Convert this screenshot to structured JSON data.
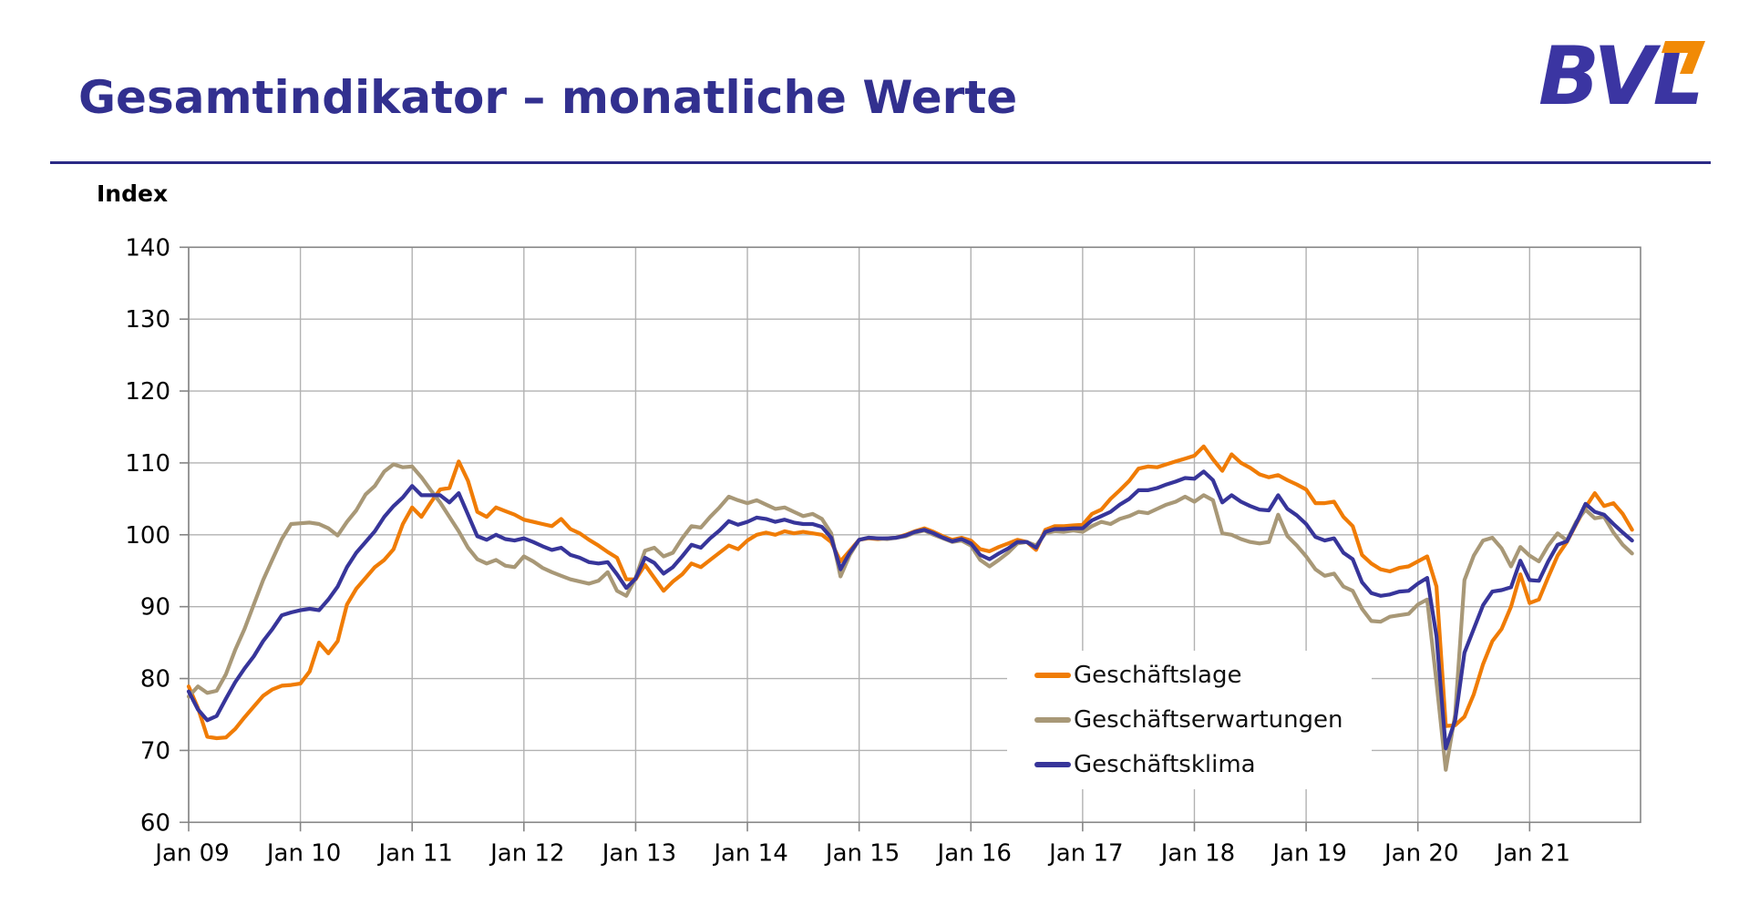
{
  "page": {
    "title": "Gesamtindikator – monatliche Werte",
    "logo_text": "BVL",
    "logo_colors": {
      "text": "#3b35a2",
      "glyph": "#f18a05"
    }
  },
  "chart_data": {
    "type": "line",
    "title": "Gesamtindikator – monatliche Werte",
    "xlabel": "",
    "ylabel": "Index",
    "ylim": [
      60,
      140
    ],
    "y_ticks": [
      60,
      70,
      80,
      90,
      100,
      110,
      120,
      130,
      140
    ],
    "x_labels": [
      "Jan 09",
      "Jan 10",
      "Jan 11",
      "Jan 12",
      "Jan 13",
      "Jan 14",
      "Jan 15",
      "Jan 16",
      "Jan 17",
      "Jan 18",
      "Jan 19",
      "Jan 20",
      "Jan 21"
    ],
    "x_range": "Jan 2009 – Dez 2021, monatlich",
    "months_per_label": 12,
    "grid": true,
    "legend_position": "inset-bottom-right",
    "series": [
      {
        "name": "Geschäftslage",
        "color": "#f07c05",
        "values": [
          78.9,
          75.9,
          71.9,
          71.7,
          71.8,
          73.0,
          74.6,
          76.1,
          77.6,
          78.5,
          79.0,
          79.1,
          79.3,
          81.0,
          85.0,
          83.5,
          85.2,
          90.3,
          92.5,
          94.0,
          95.5,
          96.5,
          98.0,
          101.5,
          103.8,
          102.5,
          104.5,
          106.3,
          106.5,
          110.2,
          107.5,
          103.2,
          102.5,
          103.8,
          103.3,
          102.8,
          102.1,
          101.8,
          101.5,
          101.2,
          102.2,
          100.8,
          100.2,
          99.3,
          98.5,
          97.6,
          96.8,
          93.8,
          93.8,
          95.8,
          94.0,
          92.2,
          93.5,
          94.5,
          96.0,
          95.5,
          96.5,
          97.5,
          98.5,
          98.0,
          99.2,
          100.0,
          100.3,
          100.0,
          100.5,
          100.2,
          100.4,
          100.2,
          100.0,
          99.0,
          96.3,
          97.8,
          99.3,
          99.5,
          99.4,
          99.5,
          99.6,
          100.0,
          100.5,
          100.9,
          100.4,
          99.8,
          99.3,
          99.6,
          99.2,
          98.0,
          97.7,
          98.3,
          98.8,
          99.3,
          99.0,
          97.9,
          100.7,
          101.2,
          101.2,
          101.3,
          101.4,
          102.9,
          103.5,
          105.0,
          106.2,
          107.5,
          109.2,
          109.5,
          109.4,
          109.8,
          110.2,
          110.6,
          111.0,
          112.3,
          110.5,
          108.9,
          111.2,
          110.0,
          109.3,
          108.4,
          108.0,
          108.3,
          107.6,
          107.0,
          106.3,
          104.4,
          104.4,
          104.6,
          102.5,
          101.2,
          97.2,
          96.0,
          95.2,
          94.9,
          95.4,
          95.6,
          96.3,
          97.0,
          92.8,
          73.4,
          73.5,
          74.7,
          77.8,
          82.0,
          85.2,
          86.9,
          90.0,
          94.5,
          90.5,
          91.0,
          94.1,
          97.1,
          99.0,
          101.5,
          103.8,
          105.8,
          104.0,
          104.4,
          102.9,
          100.7
        ]
      },
      {
        "name": "Geschäftserwartungen",
        "color": "#a89877",
        "values": [
          77.5,
          78.9,
          78.0,
          78.3,
          80.6,
          84.0,
          86.9,
          90.3,
          93.7,
          96.6,
          99.4,
          101.5,
          101.6,
          101.7,
          101.5,
          100.9,
          99.9,
          101.8,
          103.4,
          105.6,
          106.8,
          108.8,
          109.8,
          109.4,
          109.5,
          108.0,
          106.2,
          104.5,
          102.5,
          100.5,
          98.2,
          96.6,
          96.0,
          96.5,
          95.7,
          95.5,
          97.0,
          96.3,
          95.4,
          94.8,
          94.3,
          93.8,
          93.5,
          93.2,
          93.6,
          94.8,
          92.2,
          91.5,
          94.0,
          97.8,
          98.2,
          97.0,
          97.5,
          99.5,
          101.2,
          101.0,
          102.5,
          103.8,
          105.3,
          104.8,
          104.4,
          104.8,
          104.2,
          103.6,
          103.8,
          103.2,
          102.6,
          102.9,
          102.2,
          100.2,
          94.2,
          97.2,
          99.3,
          99.6,
          99.5,
          99.4,
          99.6,
          99.8,
          100.3,
          100.6,
          100.0,
          99.5,
          99.0,
          99.2,
          98.5,
          96.5,
          95.6,
          96.5,
          97.5,
          98.8,
          99.0,
          98.5,
          100.2,
          100.5,
          100.4,
          100.6,
          100.4,
          101.2,
          101.8,
          101.5,
          102.2,
          102.6,
          103.2,
          103.0,
          103.6,
          104.2,
          104.6,
          105.3,
          104.6,
          105.5,
          104.8,
          100.2,
          100.0,
          99.4,
          99.0,
          98.8,
          99.0,
          102.8,
          99.8,
          98.5,
          97.0,
          95.2,
          94.3,
          94.6,
          92.8,
          92.2,
          89.7,
          88.0,
          87.9,
          88.6,
          88.8,
          89.0,
          90.3,
          91.0,
          79.5,
          67.3,
          75.0,
          93.7,
          97.1,
          99.2,
          99.6,
          98.1,
          95.6,
          98.3,
          97.1,
          96.3,
          98.5,
          100.2,
          99.2,
          101.8,
          103.5,
          102.3,
          102.5,
          100.3,
          98.6,
          97.4
        ]
      },
      {
        "name": "Geschäftsklima",
        "color": "#37359a",
        "values": [
          78.2,
          75.7,
          74.2,
          74.8,
          77.2,
          79.5,
          81.4,
          83.1,
          85.2,
          86.9,
          88.8,
          89.2,
          89.5,
          89.7,
          89.5,
          91.0,
          92.8,
          95.5,
          97.5,
          99.0,
          100.5,
          102.5,
          104.0,
          105.2,
          106.8,
          105.5,
          105.5,
          105.5,
          104.5,
          105.8,
          102.8,
          99.8,
          99.3,
          100.0,
          99.4,
          99.2,
          99.5,
          99.0,
          98.4,
          97.9,
          98.2,
          97.2,
          96.8,
          96.2,
          96.0,
          96.2,
          94.5,
          92.6,
          93.9,
          96.8,
          96.1,
          94.6,
          95.5,
          97.0,
          98.6,
          98.2,
          99.5,
          100.6,
          101.9,
          101.4,
          101.8,
          102.4,
          102.2,
          101.8,
          102.1,
          101.7,
          101.5,
          101.5,
          101.1,
          99.6,
          95.2,
          97.5,
          99.3,
          99.6,
          99.5,
          99.5,
          99.6,
          99.9,
          100.4,
          100.7,
          100.2,
          99.6,
          99.1,
          99.4,
          98.8,
          97.2,
          96.6,
          97.4,
          98.1,
          99.0,
          99.0,
          98.2,
          100.4,
          100.8,
          100.8,
          100.9,
          100.9,
          102.0,
          102.6,
          103.2,
          104.2,
          105.0,
          106.2,
          106.2,
          106.5,
          107.0,
          107.4,
          107.9,
          107.8,
          108.8,
          107.6,
          104.5,
          105.5,
          104.6,
          104.0,
          103.5,
          103.4,
          105.5,
          103.6,
          102.7,
          101.5,
          99.7,
          99.2,
          99.5,
          97.5,
          96.6,
          93.4,
          91.9,
          91.5,
          91.7,
          92.1,
          92.2,
          93.2,
          94.0,
          85.9,
          70.3,
          74.2,
          83.6,
          86.9,
          90.2,
          92.1,
          92.3,
          92.7,
          96.4,
          93.7,
          93.6,
          96.3,
          98.6,
          99.1,
          101.6,
          104.3,
          103.2,
          102.8,
          101.5,
          100.3,
          99.2
        ]
      }
    ]
  }
}
